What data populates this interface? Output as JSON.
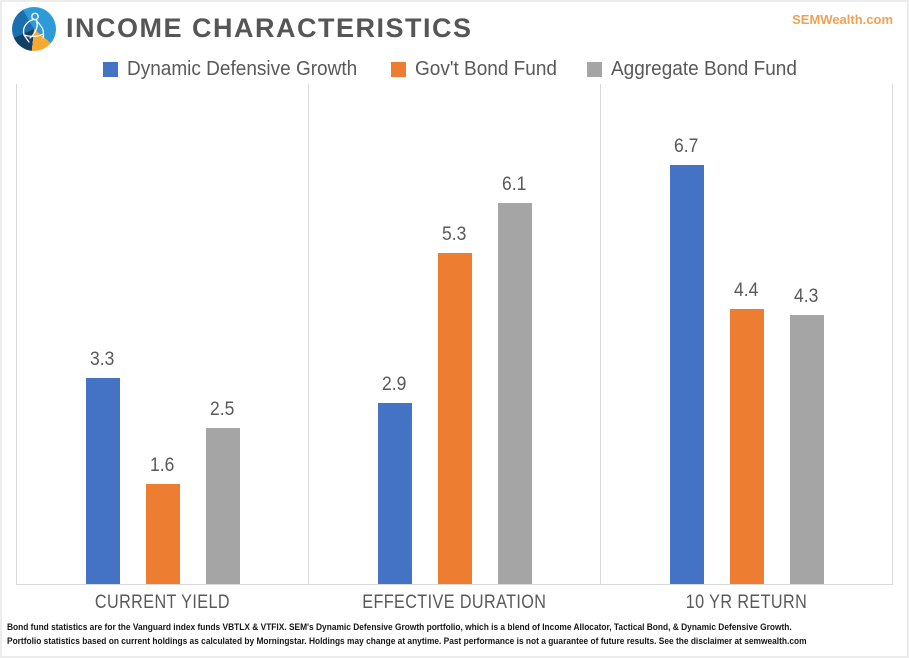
{
  "header": {
    "title": "INCOME CHARACTERISTICS",
    "website": "SEMWealth.com"
  },
  "colors": {
    "series_blue": "#4472C4",
    "series_orange": "#ED7D31",
    "series_gray": "#A5A5A5",
    "heading_text": "#565656",
    "axis_line": "#D9D9D9",
    "website_orange": "#F2A154"
  },
  "chart_data": {
    "type": "bar",
    "title": "INCOME CHARACTERISTICS",
    "categories": [
      "CURRENT YIELD",
      "EFFECTIVE DURATION",
      "10 YR RETURN"
    ],
    "series": [
      {
        "name": "Dynamic Defensive Growth",
        "color": "#4472C4",
        "values": [
          3.3,
          2.9,
          6.7
        ]
      },
      {
        "name": "Gov't Bond Fund",
        "color": "#ED7D31",
        "values": [
          1.6,
          5.3,
          4.4
        ]
      },
      {
        "name": "Aggregate Bond Fund",
        "color": "#A5A5A5",
        "values": [
          2.5,
          6.1,
          4.3
        ]
      }
    ],
    "ylim": [
      0,
      8
    ],
    "grid": "off",
    "legend_position": "top",
    "data_labels": true,
    "xlabel": "",
    "ylabel": ""
  },
  "footer": {
    "line1": "Bond fund statistics are for the Vanguard index funds VBTLX & VTFIX. SEM's Dynamic Defensive Growth portfolio, which is a blend of Income Allocator, Tactical Bond, & Dynamic Defensive Growth.",
    "line2": "Portfolio statistics based on current holdings as calculated by Morningstar. Holdings may change at anytime. Past performance is not a guarantee of future results. See the disclaimer at semwealth.com"
  }
}
